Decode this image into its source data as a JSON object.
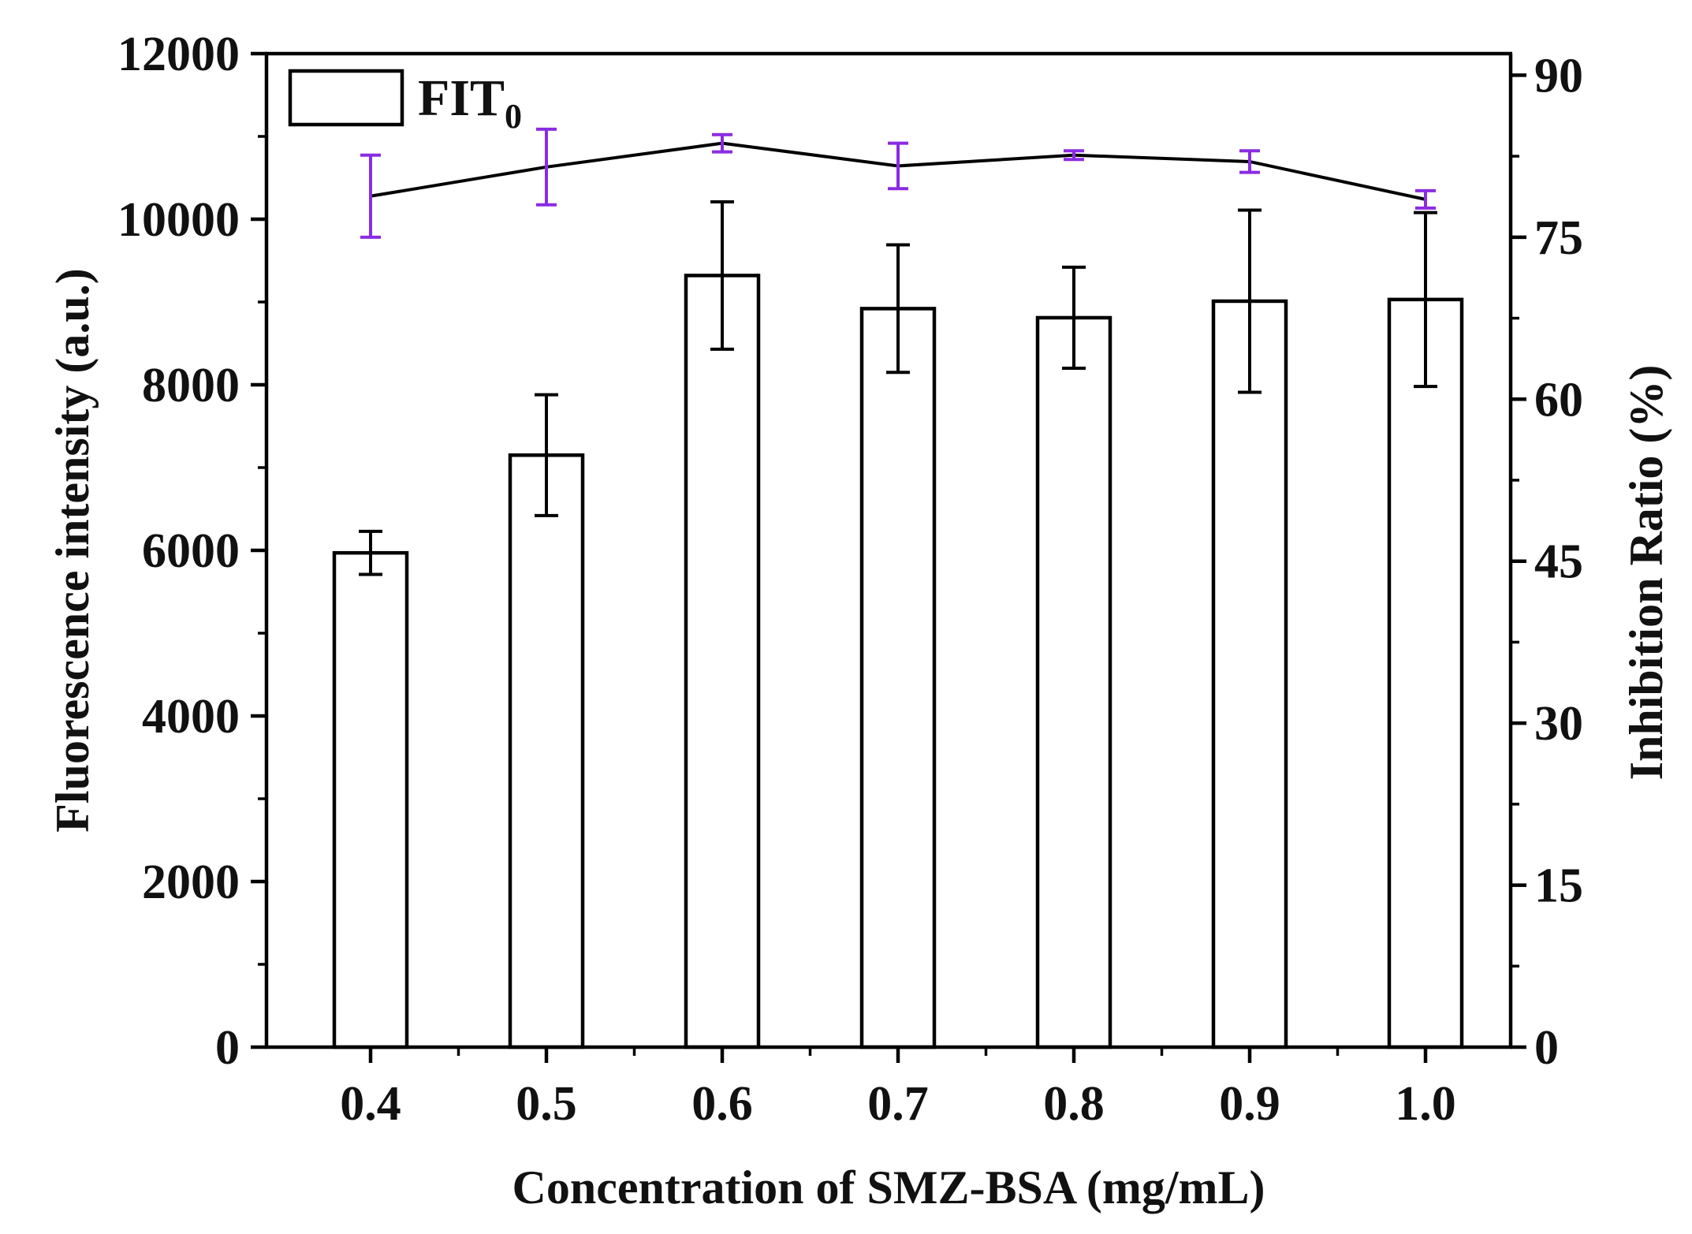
{
  "chart_data": {
    "type": "bar",
    "title": "",
    "xlabel": "Concentration of SMZ-BSA (mg/mL)",
    "ylabel": "Fluorescence intensity (a.u.)",
    "y2label": "Inhibition Ratio (%)",
    "categories": [
      "0.4",
      "0.5",
      "0.6",
      "0.7",
      "0.8",
      "0.9",
      "1.0"
    ],
    "ylim": [
      0,
      12000
    ],
    "y_ticks": [
      "0",
      "2000",
      "4000",
      "6000",
      "8000",
      "10000",
      "12000"
    ],
    "y2lim": [
      0,
      92
    ],
    "y2_ticks": [
      "0",
      "15",
      "30",
      "45",
      "60",
      "75",
      "90"
    ],
    "grid": false,
    "legend": {
      "position": "top-left",
      "label_base": "FIT",
      "label_sub": "0"
    },
    "series": [
      {
        "name": "FIT0",
        "kind": "bar",
        "axis": "left",
        "values": [
          5970,
          7150,
          9320,
          8920,
          8810,
          9010,
          9030
        ],
        "errors": [
          260,
          730,
          890,
          770,
          610,
          1100,
          1050
        ],
        "color": "#000000",
        "fill": "#ffffff"
      },
      {
        "name": "Inhibition Ratio",
        "kind": "line",
        "axis": "right",
        "values": [
          78.8,
          81.5,
          83.7,
          81.6,
          82.6,
          82.0,
          78.5
        ],
        "errors": [
          3.8,
          3.5,
          0.8,
          2.1,
          0.4,
          1.0,
          0.8
        ],
        "color": "#000000",
        "error_color": "#8b2be2"
      }
    ]
  }
}
